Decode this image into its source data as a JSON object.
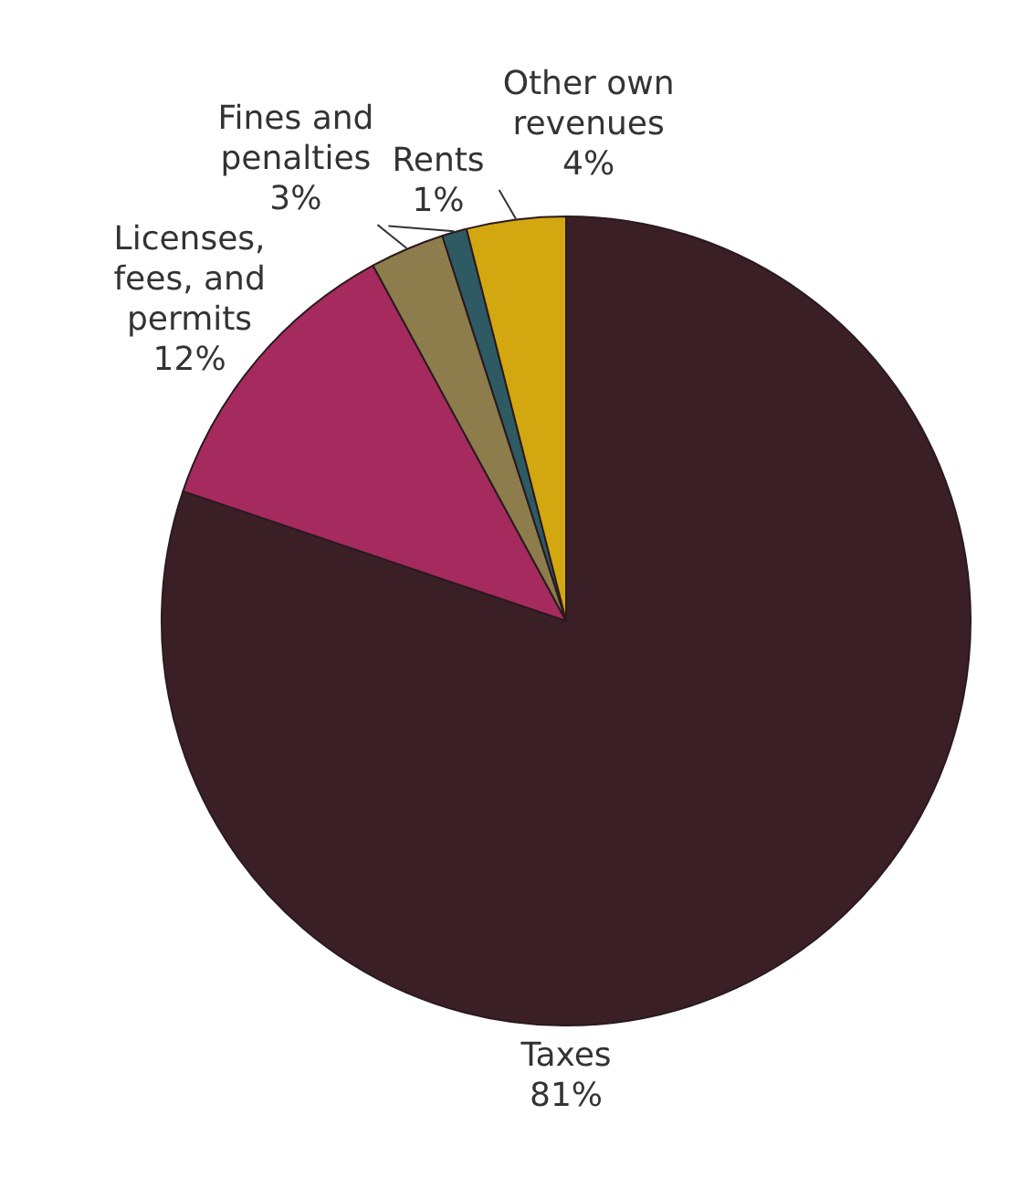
{
  "chart_data": {
    "type": "pie",
    "categories": [
      "Taxes",
      "Licenses, fees, and permits",
      "Fines and penalties",
      "Rents",
      "Other own revenues"
    ],
    "values": [
      81,
      12,
      3,
      1,
      4
    ],
    "value_labels": [
      "81%",
      "12%",
      "3%",
      "1%",
      "4%"
    ],
    "colors": [
      "#3a2026",
      "#a52a5e",
      "#8d7c4c",
      "#2e5a63",
      "#d3a70f"
    ],
    "legend": false
  }
}
